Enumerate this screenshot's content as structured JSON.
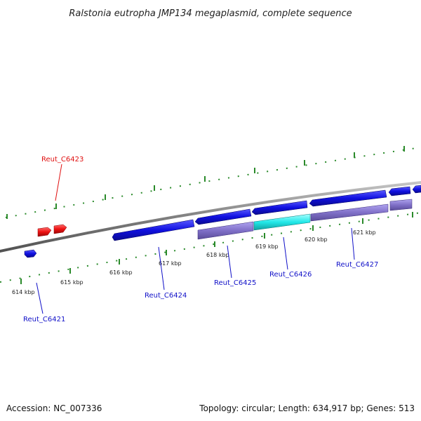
{
  "header": {
    "title": "Ralstonia eutropha JMP134 megaplasmid, complete sequence"
  },
  "footer": {
    "accession": "Accession: NC_007336",
    "summary": "Topology: circular; Length: 634,917 bp; Genes: 513"
  },
  "colors": {
    "backbone": "#808080",
    "gene_forward": "#1010e0",
    "gene_reverse": "#ee1010",
    "gene_highlight": "#22e8e8",
    "gene_secondary": "#8070c8",
    "tick": "#2a8a2a"
  },
  "scale_ticks": [
    "614 kbp",
    "615 kbp",
    "616 kbp",
    "617 kbp",
    "618 kbp",
    "619 kbp",
    "620 kbp",
    "621 kbp"
  ],
  "gene_labels": {
    "c6423": "Reut_C6423",
    "c6421": "Reut_C6421",
    "c6424": "Reut_C6424",
    "c6425": "Reut_C6425",
    "c6426": "Reut_C6426",
    "c6427": "Reut_C6427"
  }
}
